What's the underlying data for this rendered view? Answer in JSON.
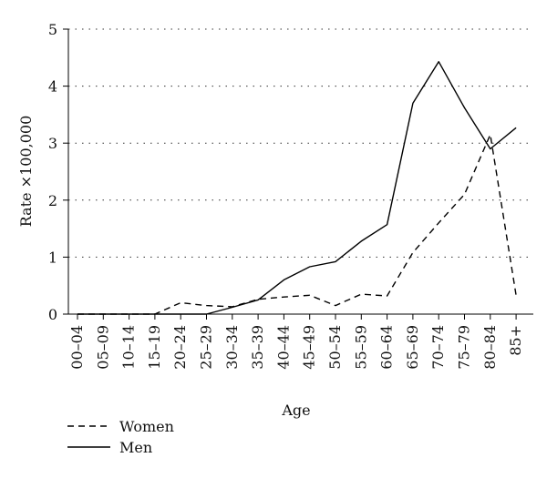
{
  "chart_data": {
    "type": "line",
    "xlabel": "Age",
    "ylabel": "Rate ×100,000",
    "ylim": [
      0,
      5
    ],
    "yticks": [
      0,
      1,
      2,
      3,
      4,
      5
    ],
    "grid": "horizontal dotted",
    "legend_placement": "bottom-left",
    "categories": [
      "00–04",
      "05–09",
      "10–14",
      "15–19",
      "20–24",
      "25–29",
      "30–34",
      "35–39",
      "40–44",
      "45–49",
      "50–54",
      "55–59",
      "60–64",
      "65–69",
      "70–74",
      "75–79",
      "80–84",
      "85+"
    ],
    "series": [
      {
        "name": "Women",
        "style": "dashed",
        "color": "#000000",
        "values": [
          0,
          0,
          0,
          0,
          0.2,
          0.15,
          0.13,
          0.26,
          0.3,
          0.33,
          0.15,
          0.35,
          0.32,
          1.08,
          1.6,
          2.1,
          3.15,
          0.33
        ]
      },
      {
        "name": "Men",
        "style": "solid",
        "color": "#000000",
        "values": [
          0,
          0,
          0,
          0,
          0,
          0,
          0.12,
          0.25,
          0.6,
          0.83,
          0.92,
          1.28,
          1.57,
          3.7,
          4.43,
          3.62,
          2.9,
          3.27
        ]
      }
    ]
  }
}
